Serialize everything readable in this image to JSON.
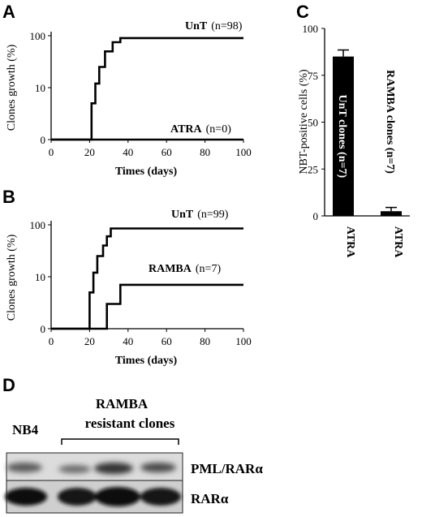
{
  "panels": {
    "A": {
      "letter": "A",
      "chart_data": {
        "type": "line",
        "xlabel": "Times (days)",
        "ylabel": "Clones growth (%)",
        "x_ticks": [
          "0",
          "20",
          "40",
          "60",
          "80",
          "100"
        ],
        "y_ticks": [
          "0",
          "10",
          "100"
        ],
        "xlim": [
          0,
          100
        ],
        "y_scale": "log-like",
        "series": [
          {
            "name": "UnT",
            "n_label": "(n=98)",
            "steps": [
              [
                0,
                0
              ],
              [
                21,
                0
              ],
              [
                21,
                5
              ],
              [
                23,
                5
              ],
              [
                23,
                12
              ],
              [
                25,
                12
              ],
              [
                25,
                25
              ],
              [
                28,
                25
              ],
              [
                28,
                50
              ],
              [
                32,
                50
              ],
              [
                32,
                75
              ],
              [
                36,
                75
              ],
              [
                36,
                90
              ],
              [
                100,
                90
              ]
            ]
          },
          {
            "name": "ATRA",
            "n_label": "(n=0)",
            "steps": [
              [
                0,
                0
              ],
              [
                100,
                0
              ]
            ]
          }
        ]
      }
    },
    "B": {
      "letter": "B",
      "chart_data": {
        "type": "line",
        "xlabel": "Times (days)",
        "ylabel": "Clones growth (%)",
        "x_ticks": [
          "0",
          "20",
          "40",
          "60",
          "80",
          "100"
        ],
        "y_ticks": [
          "0",
          "10",
          "100"
        ],
        "xlim": [
          0,
          100
        ],
        "y_scale": "log-like",
        "series": [
          {
            "name": "UnT",
            "n_label": "(n=99)",
            "steps": [
              [
                0,
                0
              ],
              [
                20,
                0
              ],
              [
                20,
                5
              ],
              [
                22,
                5
              ],
              [
                22,
                12
              ],
              [
                24,
                12
              ],
              [
                24,
                25
              ],
              [
                27,
                25
              ],
              [
                27,
                40
              ],
              [
                29,
                40
              ],
              [
                29,
                60
              ],
              [
                31,
                60
              ],
              [
                31,
                85
              ],
              [
                100,
                85
              ]
            ]
          },
          {
            "name": "RAMBA",
            "n_label": "(n=7)",
            "steps": [
              [
                0,
                0
              ],
              [
                29,
                0
              ],
              [
                29,
                3
              ],
              [
                36,
                3
              ],
              [
                36,
                7
              ],
              [
                100,
                7
              ]
            ]
          }
        ]
      }
    },
    "C": {
      "letter": "C",
      "chart_data": {
        "type": "bar",
        "ylabel": "NBT-positive cells (%)",
        "ylim": [
          0,
          100
        ],
        "y_ticks": [
          "0",
          "25",
          "50",
          "75",
          "100"
        ],
        "categories": [
          "ATRA",
          "ATRA"
        ],
        "bar_labels": [
          "UnT clones (n=7)",
          "RAMBA clones (n=7)"
        ],
        "values": [
          85,
          2.5
        ],
        "errors": [
          3.5,
          2
        ]
      }
    },
    "D": {
      "letter": "D",
      "lane_label": "NB4",
      "group_label_line1": "RAMBA",
      "group_label_line2": "resistant clones",
      "band_labels": [
        "PML/RARα",
        "RARα"
      ]
    }
  }
}
